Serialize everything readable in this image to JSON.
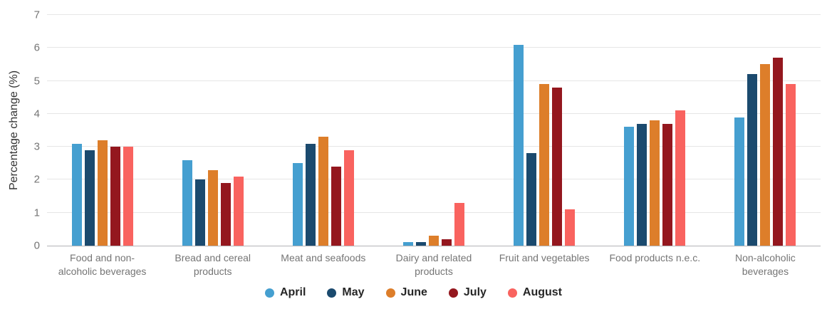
{
  "colors": {
    "background": "#ffffff",
    "gridline": "#e6e6e6",
    "axis_line": "#b3b3b6",
    "tick_label": "#757575",
    "category_label": "#757575",
    "y_title": "#333333",
    "legend_text": "#262626"
  },
  "chart_data": {
    "type": "bar",
    "title": "",
    "xlabel": "",
    "ylabel": "Percentage change (%)",
    "ylim": [
      0,
      7
    ],
    "yticks": [
      0,
      1,
      2,
      3,
      4,
      5,
      6,
      7
    ],
    "grid": "horizontal",
    "legend_position": "bottom-center",
    "categories": [
      "Food and non-alcoholic beverages",
      "Bread and cereal products",
      "Meat and seafoods",
      "Dairy and related products",
      "Fruit and vegetables",
      "Food products n.e.c.",
      "Non-alcoholic beverages"
    ],
    "series": [
      {
        "name": "April",
        "color": "#459fd0",
        "values": [
          3.1,
          2.6,
          2.5,
          0.1,
          6.1,
          3.6,
          3.9
        ]
      },
      {
        "name": "May",
        "color": "#1b4a6e",
        "values": [
          2.9,
          2.0,
          3.1,
          0.1,
          2.8,
          3.7,
          5.2
        ]
      },
      {
        "name": "June",
        "color": "#dd7e2a",
        "values": [
          3.2,
          2.3,
          3.3,
          0.3,
          4.9,
          3.8,
          5.5
        ]
      },
      {
        "name": "July",
        "color": "#94171e",
        "values": [
          3.0,
          1.9,
          2.4,
          0.2,
          4.8,
          3.7,
          5.7
        ]
      },
      {
        "name": "August",
        "color": "#f9635f",
        "values": [
          3.0,
          2.1,
          2.9,
          1.3,
          1.1,
          4.1,
          4.9
        ]
      }
    ]
  }
}
